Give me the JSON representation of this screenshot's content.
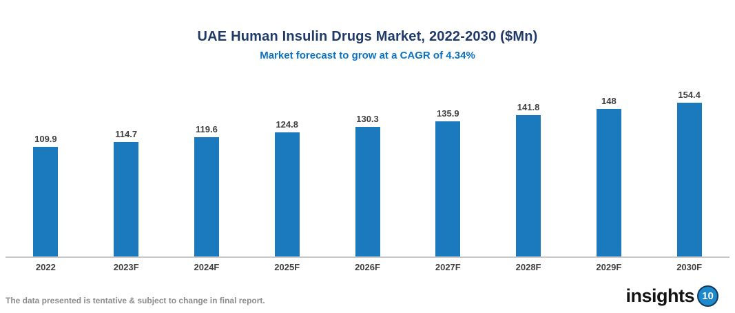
{
  "chart_data": {
    "type": "bar",
    "title": "UAE Human Insulin Drugs Market, 2022-2030 ($Mn)",
    "subtitle": "Market forecast to grow at a CAGR of 4.34%",
    "categories": [
      "2022",
      "2023F",
      "2024F",
      "2025F",
      "2026F",
      "2027F",
      "2028F",
      "2029F",
      "2030F"
    ],
    "values": [
      109.9,
      114.7,
      119.6,
      124.8,
      130.3,
      135.9,
      141.8,
      148,
      154.4
    ],
    "value_labels": [
      "109.9",
      "114.7",
      "119.6",
      "124.8",
      "130.3",
      "135.9",
      "141.8",
      "148",
      "154.4"
    ],
    "xlabel": "",
    "ylabel": "",
    "ylim": [
      0,
      160
    ],
    "grid": false,
    "legend": false,
    "data_label_position": "above",
    "bar_color": "#1B79BD"
  },
  "colors": {
    "title": "#1F3A68",
    "subtitle": "#0B72C5",
    "bar": "#1B79BD",
    "data_label": "#404040",
    "axis_line": "#C9C9C9",
    "x_axis_label": "#404040",
    "disclaimer": "#8C8C8C",
    "logo_text": "#141414",
    "logo_circle_fill": "#1C89CC"
  },
  "footer": {
    "disclaimer": "The data presented is tentative & subject to change in final report.",
    "logo_text": "insights",
    "logo_badge": "10"
  }
}
